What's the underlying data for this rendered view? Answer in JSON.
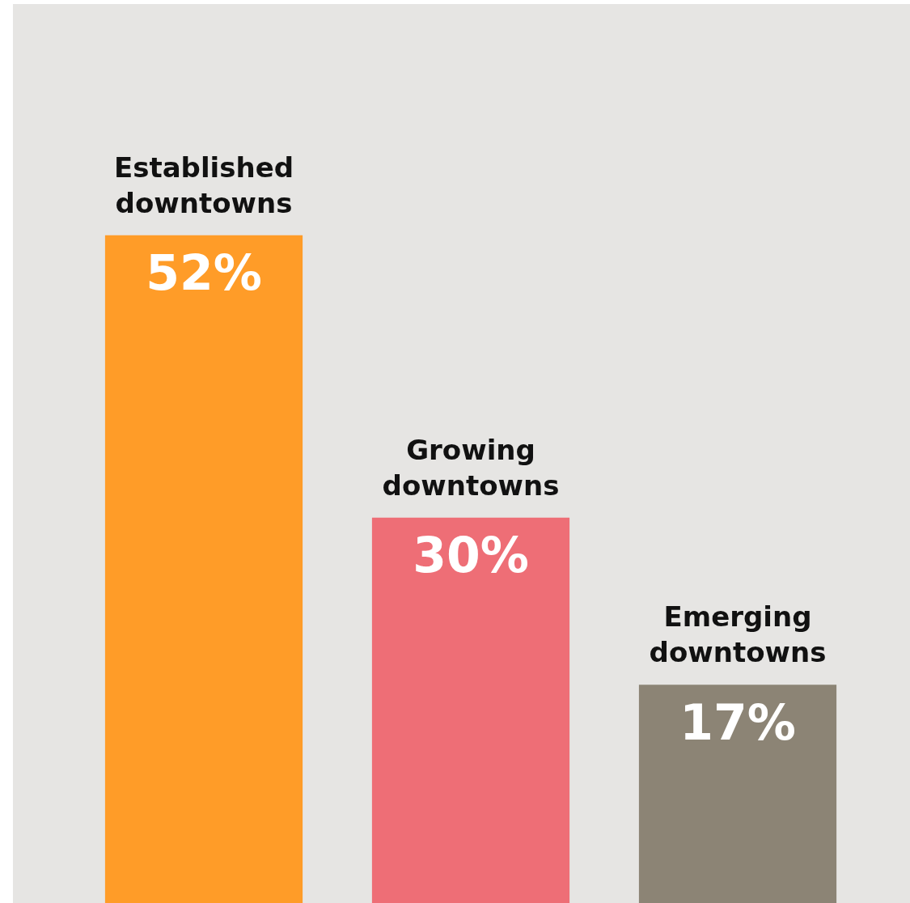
{
  "chart_data": {
    "type": "bar",
    "categories": [
      "Established downtowns",
      "Growing downtowns",
      "Emerging downtowns"
    ],
    "values": [
      52,
      30,
      17
    ],
    "colors": [
      "#ff9c28",
      "#ee6e76",
      "#8c8475"
    ],
    "value_labels": [
      "52%",
      "30%",
      "17%"
    ],
    "ylim": [
      0,
      70
    ],
    "tick_labels": false,
    "legend": false
  }
}
